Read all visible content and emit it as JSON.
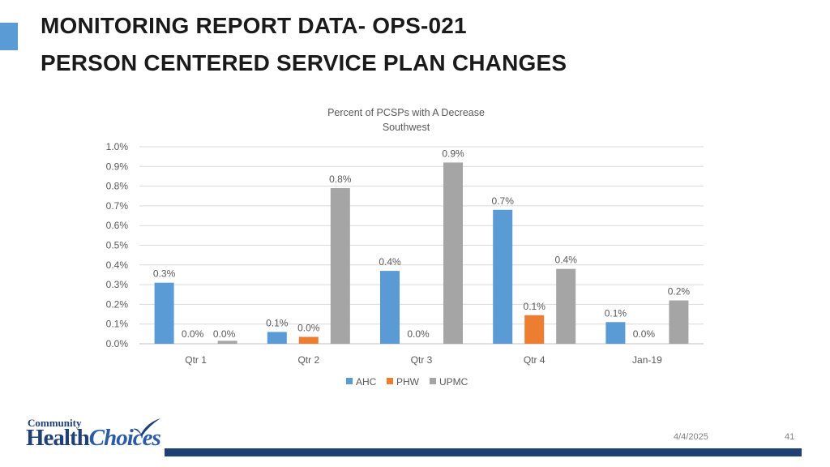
{
  "slide": {
    "title_line1": "MONITORING REPORT DATA- OPS-021",
    "title_line2": "PERSON CENTERED SERVICE PLAN CHANGES",
    "date": "4/4/2025",
    "page_number": "41",
    "logo_text_top": "Community",
    "logo_text_health": "Health",
    "logo_text_choices": "Choices"
  },
  "colors": {
    "AHC": "#5b9bd5",
    "PHW": "#ed7d31",
    "UPMC": "#a5a5a5",
    "accent": "#5b9bd5",
    "brand": "#1f3f77"
  },
  "chart_data": {
    "type": "bar",
    "title": "Percent of PCSPs with A Decrease",
    "subtitle": "Southwest",
    "categories": [
      "Qtr 1",
      "Qtr 2",
      "Qtr 3",
      "Qtr 4",
      "Jan-19"
    ],
    "series": [
      {
        "name": "AHC",
        "values": [
          0.31,
          0.06,
          0.37,
          0.68,
          0.11
        ],
        "labels": [
          "0.3%",
          "0.1%",
          "0.4%",
          "0.7%",
          "0.1%"
        ]
      },
      {
        "name": "PHW",
        "values": [
          0.0,
          0.035,
          0.0,
          0.145,
          0.0
        ],
        "labels": [
          "0.0%",
          "0.0%",
          "0.0%",
          "0.1%",
          "0.0%"
        ]
      },
      {
        "name": "UPMC",
        "values": [
          0.015,
          0.79,
          0.92,
          0.38,
          0.22
        ],
        "labels": [
          "0.0%",
          "0.8%",
          "0.9%",
          "0.4%",
          "0.2%"
        ]
      }
    ],
    "yticks": [
      "0.0%",
      "0.1%",
      "0.2%",
      "0.3%",
      "0.4%",
      "0.5%",
      "0.6%",
      "0.7%",
      "0.8%",
      "0.9%",
      "1.0%"
    ],
    "ylim": [
      0,
      1.0
    ],
    "xlabel": "",
    "ylabel": "",
    "legend_position": "bottom",
    "grid": true
  }
}
